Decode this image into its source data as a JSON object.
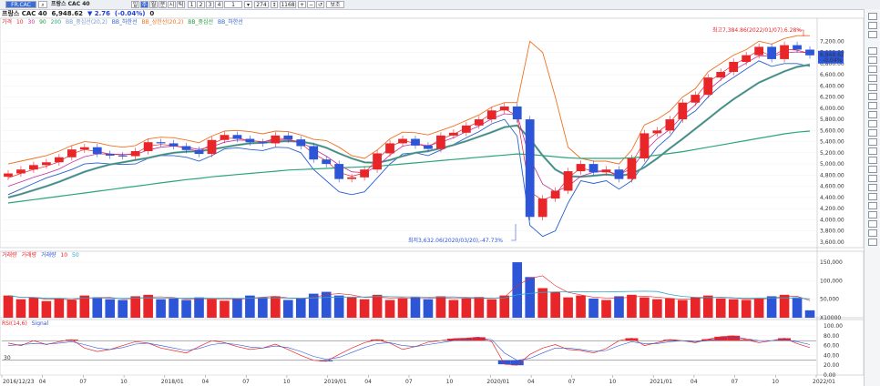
{
  "toolbar": {
    "symbol_field": "FR.CAC",
    "name": "프랑스 CAC 40",
    "period_buttons": [
      "일",
      "주",
      "월",
      "분",
      "시",
      "틱"
    ],
    "number_buttons": [
      "1",
      "2",
      "3",
      "4",
      "1"
    ],
    "count_field": "274",
    "total_field": "1168",
    "view_label": "보조"
  },
  "header": {
    "name": "프랑스 CAC 40",
    "price": "6,948.62",
    "change": "▼ 2.76",
    "change_pct": "(-0.04%)",
    "volume": "0"
  },
  "price_legend": [
    "가격",
    "10",
    "30",
    "90",
    "200",
    "BB_중심선(20,2)",
    "BB_하한선",
    "BB_상한선(20,2)",
    "BB_중심선",
    "BB_하한선"
  ],
  "volume_legend": [
    "거래량",
    "거래량",
    "거래량",
    "10",
    "50"
  ],
  "rsi_legend": [
    "RSI(14,6)",
    "Signal"
  ],
  "colors": {
    "up": "#e8262a",
    "down": "#2d55d8",
    "ma10": "#e8262a",
    "ma30": "#c0309a",
    "ma90": "#1f9a3a",
    "ma200": "#2aa67a",
    "bb_upper": "#f07020",
    "bb_lower": "#2a62c9",
    "bb_mid": "#7896c8"
  },
  "annotations": {
    "high": "최고7,384.86(2022/01/07),6.28%",
    "low": "최저3,632.06(2020/03/20),-47.73%"
  },
  "price_marker": "6,948.62",
  "price_marker_sub": "-0.04%",
  "chart_data": {
    "type": "candlestick",
    "x_tick_labels": [
      "2016/12/23",
      "04",
      "07",
      "10",
      "2018/01",
      "04",
      "07",
      "10",
      "2019/01",
      "04",
      "07",
      "10",
      "2020/01",
      "04",
      "07",
      "10",
      "2021/01",
      "04",
      "07",
      "10",
      "2022/01"
    ],
    "y_ticks": [
      "7,200.00",
      "7,000.00",
      "6,800.00",
      "6,600.00",
      "6,400.00",
      "6,200.00",
      "6,000.00",
      "5,800.00",
      "5,600.00",
      "5,400.00",
      "5,200.00",
      "5,000.00",
      "4,800.00",
      "4,600.00",
      "4,400.00",
      "4,200.00",
      "4,000.00",
      "3,800.00",
      "3,600.00"
    ],
    "price_close": [
      4830,
      4900,
      4980,
      5030,
      5120,
      5260,
      5300,
      5180,
      5150,
      5140,
      5230,
      5390,
      5370,
      5320,
      5250,
      5180,
      5430,
      5520,
      5450,
      5390,
      5370,
      5510,
      5440,
      5320,
      5080,
      5000,
      4730,
      4760,
      4900,
      5190,
      5370,
      5450,
      5330,
      5270,
      5510,
      5560,
      5690,
      5800,
      5960,
      6030,
      5800,
      4050,
      4380,
      4520,
      4870,
      5000,
      4850,
      4900,
      4730,
      5100,
      5550,
      5600,
      5800,
      6100,
      6240,
      6550,
      6650,
      6830,
      6950,
      7100,
      6880,
      7130,
      7050,
      6948
    ],
    "ma10": [
      4750,
      4830,
      4900,
      4960,
      5040,
      5180,
      5260,
      5220,
      5180,
      5160,
      5190,
      5320,
      5350,
      5330,
      5280,
      5220,
      5360,
      5460,
      5460,
      5420,
      5390,
      5460,
      5450,
      5370,
      5180,
      5060,
      4850,
      4780,
      4840,
      5080,
      5300,
      5420,
      5370,
      5300,
      5450,
      5530,
      5650,
      5760,
      5900,
      5990,
      5860,
      4500,
      4350,
      4450,
      4750,
      4930,
      4870,
      4880,
      4780,
      5020,
      5400,
      5560,
      5740,
      6020,
      6190,
      6470,
      6620,
      6780,
      6900,
      7040,
      6930,
      7060,
      7040,
      6980
    ],
    "ma30": [
      4600,
      4680,
      4760,
      4830,
      4910,
      5030,
      5130,
      5180,
      5180,
      5170,
      5170,
      5250,
      5300,
      5320,
      5300,
      5260,
      5310,
      5390,
      5430,
      5420,
      5400,
      5430,
      5430,
      5390,
      5270,
      5140,
      4980,
      4860,
      4840,
      4960,
      5160,
      5320,
      5360,
      5330,
      5390,
      5470,
      5580,
      5680,
      5810,
      5900,
      5880,
      5100,
      4640,
      4500,
      4600,
      4780,
      4850,
      4870,
      4810,
      4920,
      5220,
      5450,
      5620,
      5860,
      6060,
      6320,
      6510,
      6680,
      6810,
      6940,
      6930,
      6990,
      7010,
      6990
    ],
    "ma90": [
      4400,
      4460,
      4530,
      4600,
      4680,
      4770,
      4860,
      4930,
      4990,
      5030,
      5070,
      5110,
      5160,
      5200,
      5220,
      5230,
      5260,
      5300,
      5340,
      5370,
      5380,
      5400,
      5410,
      5400,
      5360,
      5290,
      5190,
      5100,
      5030,
      5020,
      5070,
      5140,
      5200,
      5230,
      5280,
      5340,
      5410,
      5490,
      5570,
      5660,
      5690,
      5450,
      5150,
      4900,
      4780,
      4770,
      4790,
      4810,
      4790,
      4820,
      4940,
      5100,
      5280,
      5450,
      5630,
      5810,
      5990,
      6160,
      6310,
      6460,
      6560,
      6660,
      6740,
      6780
    ],
    "ma200": [
      4300,
      4330,
      4360,
      4390,
      4420,
      4450,
      4480,
      4510,
      4540,
      4570,
      4600,
      4630,
      4660,
      4690,
      4720,
      4740,
      4770,
      4790,
      4810,
      4830,
      4850,
      4870,
      4890,
      4900,
      4910,
      4920,
      4930,
      4940,
      4950,
      4960,
      4980,
      5000,
      5020,
      5040,
      5060,
      5080,
      5100,
      5120,
      5140,
      5160,
      5180,
      5170,
      5150,
      5130,
      5110,
      5100,
      5100,
      5100,
      5100,
      5110,
      5130,
      5160,
      5190,
      5220,
      5260,
      5300,
      5340,
      5380,
      5420,
      5460,
      5500,
      5540,
      5570,
      5590
    ],
    "bb_upper": [
      5000,
      5050,
      5100,
      5150,
      5230,
      5330,
      5400,
      5380,
      5330,
      5300,
      5330,
      5450,
      5480,
      5470,
      5430,
      5380,
      5500,
      5590,
      5600,
      5580,
      5540,
      5590,
      5580,
      5520,
      5440,
      5420,
      5300,
      5150,
      5100,
      5250,
      5450,
      5570,
      5560,
      5520,
      5600,
      5680,
      5780,
      5880,
      6020,
      6100,
      6100,
      7200,
      7000,
      6200,
      5300,
      5100,
      5050,
      5050,
      5000,
      5250,
      5700,
      5800,
      5950,
      6200,
      6350,
      6650,
      6800,
      6950,
      7050,
      7200,
      7150,
      7250,
      7300,
      7300
    ],
    "bb_lower": [
      4450,
      4550,
      4650,
      4750,
      4820,
      4900,
      5000,
      5020,
      5000,
      4990,
      5000,
      5100,
      5150,
      5150,
      5120,
      5050,
      5150,
      5270,
      5290,
      5260,
      5240,
      5300,
      5290,
      5200,
      4900,
      4700,
      4500,
      4450,
      4500,
      4750,
      5000,
      5180,
      5200,
      5150,
      5250,
      5350,
      5470,
      5580,
      5720,
      5800,
      5500,
      3900,
      3700,
      3800,
      4300,
      4700,
      4650,
      4700,
      4550,
      4700,
      5000,
      5300,
      5500,
      5800,
      5950,
      6200,
      6400,
      6550,
      6700,
      6850,
      6750,
      6800,
      6800,
      6750
    ],
    "volume": [
      60000,
      50000,
      55000,
      45000,
      52000,
      48000,
      60000,
      55000,
      50000,
      48000,
      58000,
      62000,
      50000,
      52000,
      48000,
      55000,
      50000,
      46000,
      52000,
      60000,
      55000,
      58000,
      48000,
      52000,
      65000,
      70000,
      60000,
      55000,
      50000,
      62000,
      48000,
      52000,
      55000,
      50000,
      58000,
      48000,
      52000,
      56000,
      50000,
      60000,
      150000,
      110000,
      80000,
      70000,
      55000,
      60000,
      52000,
      48000,
      58000,
      62000,
      55000,
      50000,
      52000,
      48000,
      55000,
      60000,
      52000,
      50000,
      48000,
      52000,
      58000,
      62000,
      55000,
      20000
    ],
    "volume_ticks": [
      "150,000",
      "100,000",
      "50,000",
      "X10000"
    ],
    "rsi": [
      65,
      60,
      70,
      62,
      68,
      72,
      55,
      48,
      52,
      60,
      68,
      65,
      55,
      50,
      45,
      58,
      70,
      66,
      58,
      52,
      55,
      63,
      52,
      40,
      30,
      28,
      42,
      55,
      66,
      72,
      65,
      52,
      58,
      67,
      70,
      74,
      75,
      77,
      68,
      22,
      20,
      42,
      55,
      62,
      52,
      50,
      45,
      54,
      70,
      75,
      60,
      66,
      72,
      70,
      66,
      73,
      78,
      80,
      72,
      66,
      70,
      75,
      64,
      56
    ],
    "rsi_signal": [
      60,
      62,
      64,
      63,
      65,
      68,
      62,
      55,
      52,
      56,
      63,
      65,
      60,
      55,
      50,
      54,
      62,
      65,
      62,
      57,
      55,
      59,
      56,
      48,
      38,
      32,
      36,
      46,
      56,
      64,
      66,
      60,
      58,
      62,
      66,
      70,
      72,
      75,
      72,
      45,
      30,
      34,
      45,
      55,
      55,
      52,
      48,
      50,
      60,
      68,
      64,
      64,
      68,
      70,
      68,
      70,
      74,
      77,
      74,
      70,
      70,
      72,
      68,
      62
    ],
    "rsi_ticks": [
      "100.00",
      "80.00",
      "60.00",
      "40.00",
      "20.00",
      "0.00"
    ],
    "rsi_ref_label": "30"
  }
}
